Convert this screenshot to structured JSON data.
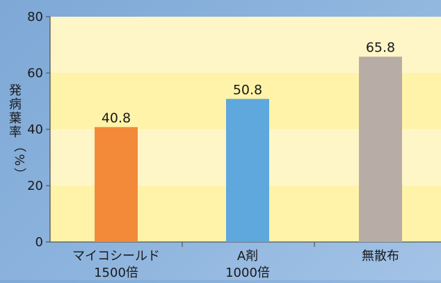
{
  "chart_data": {
    "type": "bar",
    "title": "",
    "ylabel": "発病葉率（%）",
    "xlabel": "",
    "ylim": [
      0,
      80
    ],
    "yticks": [
      0,
      20,
      40,
      60,
      80
    ],
    "categories": [
      {
        "label": [
          "マイコシールド",
          "1500倍"
        ]
      },
      {
        "label": [
          "A剤",
          "1000倍"
        ]
      },
      {
        "label": [
          "無散布"
        ]
      }
    ],
    "values": [
      40.8,
      50.8,
      65.8
    ],
    "value_labels": [
      "40.8",
      "50.8",
      "65.8"
    ],
    "bar_colors": [
      "#f28a3a",
      "#5ea8dd",
      "#b7aca6"
    ],
    "band_colors": [
      "#fff6c8",
      "#fef3a8"
    ],
    "grid": false,
    "legend": "none"
  }
}
